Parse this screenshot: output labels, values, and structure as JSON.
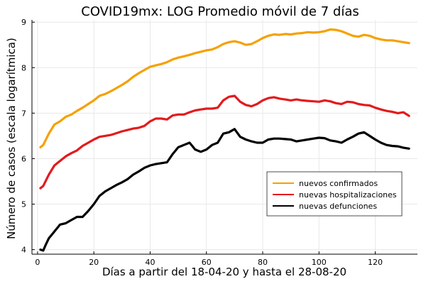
{
  "chart_data": {
    "type": "line",
    "title": "COVID19mx: LOG Promedio móvil de 7 días",
    "xlabel": "Días a partir del 18-04-20 y hasta el 28-08-20",
    "ylabel": "Número de casos (escala logarítmica)",
    "xlim": [
      -2,
      135
    ],
    "ylim": [
      3.9,
      9.05
    ],
    "xticks": [
      0,
      20,
      40,
      60,
      80,
      100,
      120
    ],
    "yticks": [
      4,
      5,
      6,
      7,
      8,
      9
    ],
    "grid": true,
    "legend_position": "bottom-right",
    "series": [
      {
        "name": "nuevos confirmados",
        "color": "#f5a100",
        "points": [
          [
            1,
            6.25
          ],
          [
            2,
            6.3
          ],
          [
            4,
            6.55
          ],
          [
            6,
            6.75
          ],
          [
            8,
            6.82
          ],
          [
            10,
            6.92
          ],
          [
            12,
            6.97
          ],
          [
            14,
            7.05
          ],
          [
            16,
            7.12
          ],
          [
            18,
            7.2
          ],
          [
            20,
            7.28
          ],
          [
            22,
            7.38
          ],
          [
            24,
            7.42
          ],
          [
            26,
            7.48
          ],
          [
            28,
            7.55
          ],
          [
            30,
            7.62
          ],
          [
            32,
            7.7
          ],
          [
            34,
            7.8
          ],
          [
            36,
            7.88
          ],
          [
            38,
            7.95
          ],
          [
            40,
            8.02
          ],
          [
            42,
            8.05
          ],
          [
            44,
            8.08
          ],
          [
            46,
            8.12
          ],
          [
            48,
            8.18
          ],
          [
            50,
            8.22
          ],
          [
            52,
            8.25
          ],
          [
            54,
            8.28
          ],
          [
            56,
            8.32
          ],
          [
            58,
            8.35
          ],
          [
            60,
            8.38
          ],
          [
            62,
            8.4
          ],
          [
            64,
            8.45
          ],
          [
            66,
            8.52
          ],
          [
            68,
            8.56
          ],
          [
            70,
            8.58
          ],
          [
            72,
            8.55
          ],
          [
            74,
            8.5
          ],
          [
            76,
            8.52
          ],
          [
            78,
            8.58
          ],
          [
            80,
            8.65
          ],
          [
            82,
            8.7
          ],
          [
            84,
            8.73
          ],
          [
            86,
            8.72
          ],
          [
            88,
            8.74
          ],
          [
            90,
            8.73
          ],
          [
            92,
            8.75
          ],
          [
            94,
            8.76
          ],
          [
            96,
            8.78
          ],
          [
            98,
            8.77
          ],
          [
            100,
            8.78
          ],
          [
            102,
            8.8
          ],
          [
            104,
            8.84
          ],
          [
            106,
            8.83
          ],
          [
            108,
            8.8
          ],
          [
            110,
            8.75
          ],
          [
            112,
            8.7
          ],
          [
            114,
            8.68
          ],
          [
            116,
            8.72
          ],
          [
            118,
            8.7
          ],
          [
            120,
            8.65
          ],
          [
            122,
            8.62
          ],
          [
            124,
            8.6
          ],
          [
            126,
            8.6
          ],
          [
            128,
            8.58
          ],
          [
            130,
            8.56
          ],
          [
            132,
            8.54
          ]
        ]
      },
      {
        "name": "nuevas hospitalizaciones",
        "color": "#e31a1c",
        "points": [
          [
            1,
            5.35
          ],
          [
            2,
            5.4
          ],
          [
            4,
            5.65
          ],
          [
            6,
            5.85
          ],
          [
            8,
            5.95
          ],
          [
            10,
            6.05
          ],
          [
            12,
            6.12
          ],
          [
            14,
            6.18
          ],
          [
            16,
            6.28
          ],
          [
            18,
            6.35
          ],
          [
            20,
            6.42
          ],
          [
            22,
            6.48
          ],
          [
            24,
            6.5
          ],
          [
            26,
            6.52
          ],
          [
            28,
            6.56
          ],
          [
            30,
            6.6
          ],
          [
            32,
            6.63
          ],
          [
            34,
            6.66
          ],
          [
            36,
            6.68
          ],
          [
            38,
            6.72
          ],
          [
            40,
            6.82
          ],
          [
            42,
            6.88
          ],
          [
            44,
            6.88
          ],
          [
            46,
            6.86
          ],
          [
            48,
            6.95
          ],
          [
            50,
            6.97
          ],
          [
            52,
            6.97
          ],
          [
            54,
            7.02
          ],
          [
            56,
            7.06
          ],
          [
            58,
            7.08
          ],
          [
            60,
            7.1
          ],
          [
            62,
            7.1
          ],
          [
            64,
            7.12
          ],
          [
            66,
            7.28
          ],
          [
            68,
            7.36
          ],
          [
            70,
            7.38
          ],
          [
            72,
            7.25
          ],
          [
            74,
            7.18
          ],
          [
            76,
            7.15
          ],
          [
            78,
            7.2
          ],
          [
            80,
            7.28
          ],
          [
            82,
            7.33
          ],
          [
            84,
            7.35
          ],
          [
            86,
            7.32
          ],
          [
            88,
            7.3
          ],
          [
            90,
            7.28
          ],
          [
            92,
            7.3
          ],
          [
            94,
            7.28
          ],
          [
            96,
            7.27
          ],
          [
            98,
            7.26
          ],
          [
            100,
            7.25
          ],
          [
            102,
            7.28
          ],
          [
            104,
            7.26
          ],
          [
            106,
            7.22
          ],
          [
            108,
            7.2
          ],
          [
            110,
            7.25
          ],
          [
            112,
            7.24
          ],
          [
            114,
            7.2
          ],
          [
            116,
            7.18
          ],
          [
            118,
            7.17
          ],
          [
            120,
            7.12
          ],
          [
            122,
            7.08
          ],
          [
            124,
            7.05
          ],
          [
            126,
            7.03
          ],
          [
            128,
            7.0
          ],
          [
            130,
            7.02
          ],
          [
            132,
            6.94
          ]
        ]
      },
      {
        "name": "nuevas defunciones",
        "color": "#000000",
        "points": [
          [
            1,
            4.0
          ],
          [
            2,
            3.98
          ],
          [
            3,
            4.12
          ],
          [
            4,
            4.25
          ],
          [
            6,
            4.4
          ],
          [
            8,
            4.55
          ],
          [
            10,
            4.58
          ],
          [
            12,
            4.65
          ],
          [
            14,
            4.72
          ],
          [
            16,
            4.72
          ],
          [
            18,
            4.85
          ],
          [
            20,
            5.0
          ],
          [
            22,
            5.18
          ],
          [
            24,
            5.28
          ],
          [
            26,
            5.35
          ],
          [
            28,
            5.42
          ],
          [
            30,
            5.48
          ],
          [
            32,
            5.55
          ],
          [
            34,
            5.65
          ],
          [
            36,
            5.72
          ],
          [
            38,
            5.8
          ],
          [
            40,
            5.85
          ],
          [
            42,
            5.88
          ],
          [
            44,
            5.9
          ],
          [
            46,
            5.92
          ],
          [
            48,
            6.1
          ],
          [
            50,
            6.25
          ],
          [
            52,
            6.3
          ],
          [
            54,
            6.35
          ],
          [
            56,
            6.2
          ],
          [
            58,
            6.15
          ],
          [
            60,
            6.2
          ],
          [
            62,
            6.3
          ],
          [
            64,
            6.35
          ],
          [
            66,
            6.55
          ],
          [
            68,
            6.58
          ],
          [
            70,
            6.65
          ],
          [
            72,
            6.48
          ],
          [
            74,
            6.42
          ],
          [
            76,
            6.38
          ],
          [
            78,
            6.35
          ],
          [
            80,
            6.35
          ],
          [
            82,
            6.42
          ],
          [
            84,
            6.44
          ],
          [
            86,
            6.44
          ],
          [
            88,
            6.43
          ],
          [
            90,
            6.42
          ],
          [
            92,
            6.38
          ],
          [
            94,
            6.4
          ],
          [
            96,
            6.42
          ],
          [
            98,
            6.44
          ],
          [
            100,
            6.46
          ],
          [
            102,
            6.45
          ],
          [
            104,
            6.4
          ],
          [
            106,
            6.38
          ],
          [
            108,
            6.35
          ],
          [
            110,
            6.42
          ],
          [
            112,
            6.48
          ],
          [
            114,
            6.55
          ],
          [
            116,
            6.58
          ],
          [
            118,
            6.5
          ],
          [
            120,
            6.42
          ],
          [
            122,
            6.35
          ],
          [
            124,
            6.3
          ],
          [
            126,
            6.28
          ],
          [
            128,
            6.27
          ],
          [
            130,
            6.24
          ],
          [
            132,
            6.22
          ]
        ]
      }
    ]
  }
}
